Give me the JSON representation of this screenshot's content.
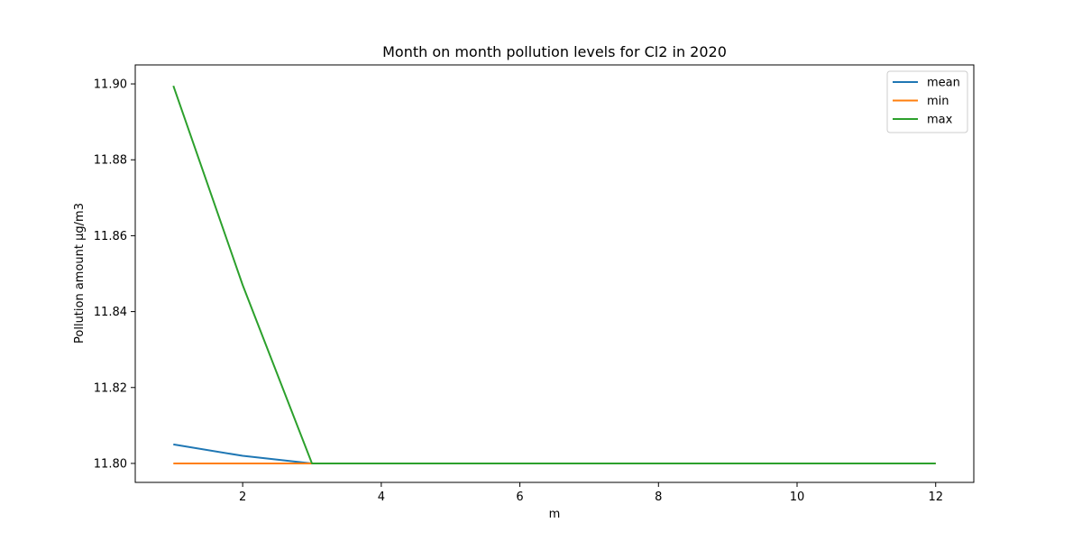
{
  "chart_data": {
    "type": "line",
    "title": "Month on month pollution levels for Cl2 in 2020",
    "xlabel": "m",
    "ylabel": "Pollution amount µg/m3",
    "x": [
      1,
      2,
      3,
      4,
      5,
      6,
      7,
      8,
      9,
      10,
      11,
      12
    ],
    "xlim": [
      0.45,
      12.55
    ],
    "ylim": [
      11.795,
      11.905
    ],
    "xticks": [
      2,
      4,
      6,
      8,
      10,
      12
    ],
    "yticks": [
      11.8,
      11.82,
      11.84,
      11.86,
      11.88,
      11.9
    ],
    "ytick_labels": [
      "11.80",
      "11.82",
      "11.84",
      "11.86",
      "11.88",
      "11.90"
    ],
    "grid": false,
    "legend_position": "top-right",
    "series": [
      {
        "name": "mean",
        "color": "#1f77b4",
        "values": [
          11.805,
          11.802,
          11.8,
          11.8,
          11.8,
          11.8,
          11.8,
          11.8,
          11.8,
          11.8,
          11.8,
          11.8
        ]
      },
      {
        "name": "min",
        "color": "#ff7f0e",
        "values": [
          11.8,
          11.8,
          11.8,
          11.8,
          11.8,
          11.8,
          11.8,
          11.8,
          11.8,
          11.8,
          11.8,
          11.8
        ]
      },
      {
        "name": "max",
        "color": "#2ca02c",
        "values": [
          11.8995,
          11.847,
          11.8,
          11.8,
          11.8,
          11.8,
          11.8,
          11.8,
          11.8,
          11.8,
          11.8,
          11.8
        ]
      }
    ]
  }
}
